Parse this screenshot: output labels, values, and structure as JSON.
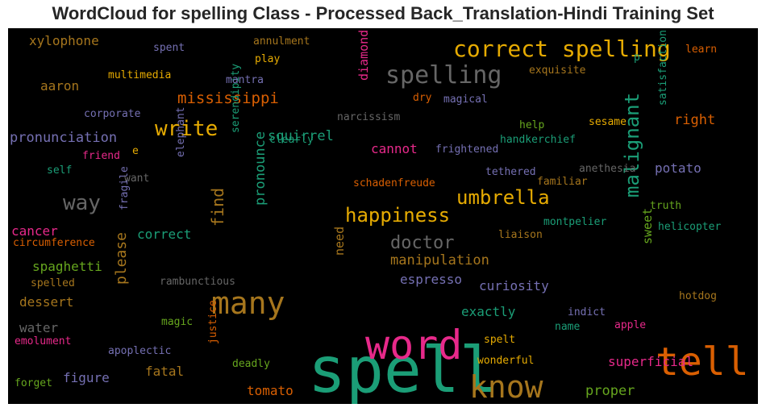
{
  "chart_data": {
    "type": "wordcloud",
    "title": "WordCloud for spelling Class - Processed Back_Translation-Hindi Training Set",
    "background": "#000000",
    "words": [
      {
        "text": "spell",
        "weight": 1.0,
        "color": "#1b9e77"
      },
      {
        "text": "word",
        "weight": 0.88,
        "color": "#e7298a"
      },
      {
        "text": "tell",
        "weight": 0.8,
        "color": "#d95f02"
      },
      {
        "text": "know",
        "weight": 0.68,
        "color": "#a6761d"
      },
      {
        "text": "many",
        "weight": 0.68,
        "color": "#a6761d"
      },
      {
        "text": "spelling",
        "weight": 0.56,
        "color": "#666666"
      },
      {
        "text": "correct spelling",
        "weight": 0.52,
        "color": "#e6ab02"
      },
      {
        "text": "write",
        "weight": 0.46,
        "color": "#e6ab02"
      },
      {
        "text": "way",
        "weight": 0.44,
        "color": "#666666"
      },
      {
        "text": "umbrella",
        "weight": 0.42,
        "color": "#e6ab02"
      },
      {
        "text": "happiness",
        "weight": 0.42,
        "color": "#e6ab02"
      },
      {
        "text": "malignant",
        "weight": 0.4,
        "color": "#1b9e77"
      },
      {
        "text": "doctor",
        "weight": 0.38,
        "color": "#666666"
      },
      {
        "text": "mississippi",
        "weight": 0.36,
        "color": "#d95f02"
      },
      {
        "text": "find",
        "weight": 0.36,
        "color": "#a6761d"
      },
      {
        "text": "pronounce",
        "weight": 0.32,
        "color": "#1b9e77"
      },
      {
        "text": "please",
        "weight": 0.32,
        "color": "#a6761d"
      },
      {
        "text": "right",
        "weight": 0.3,
        "color": "#d95f02"
      },
      {
        "text": "squirrel",
        "weight": 0.3,
        "color": "#1b9e77"
      },
      {
        "text": "pronunciation",
        "weight": 0.3,
        "color": "#7570b3"
      },
      {
        "text": "manipulation",
        "weight": 0.28,
        "color": "#a6761d"
      },
      {
        "text": "cannot",
        "weight": 0.27,
        "color": "#e7298a"
      },
      {
        "text": "exactly",
        "weight": 0.27,
        "color": "#1b9e77"
      },
      {
        "text": "curiosity",
        "weight": 0.27,
        "color": "#7570b3"
      },
      {
        "text": "potato",
        "weight": 0.27,
        "color": "#7570b3"
      },
      {
        "text": "proper",
        "weight": 0.27,
        "color": "#66a61e"
      },
      {
        "text": "superficial",
        "weight": 0.27,
        "color": "#e7298a"
      },
      {
        "text": "espresso",
        "weight": 0.26,
        "color": "#7570b3"
      },
      {
        "text": "spaghetti",
        "weight": 0.26,
        "color": "#66a61e"
      },
      {
        "text": "correct",
        "weight": 0.26,
        "color": "#1b9e77"
      },
      {
        "text": "cancer",
        "weight": 0.26,
        "color": "#e7298a"
      },
      {
        "text": "figure",
        "weight": 0.26,
        "color": "#7570b3"
      },
      {
        "text": "fatal",
        "weight": 0.26,
        "color": "#a6761d"
      },
      {
        "text": "tomato",
        "weight": 0.26,
        "color": "#d95f02"
      },
      {
        "text": "dessert",
        "weight": 0.26,
        "color": "#a6761d"
      },
      {
        "text": "water",
        "weight": 0.26,
        "color": "#666666"
      },
      {
        "text": "aaron",
        "weight": 0.26,
        "color": "#a6761d"
      },
      {
        "text": "xylophone",
        "weight": 0.24,
        "color": "#a6761d"
      },
      {
        "text": "diamond",
        "weight": 0.24,
        "color": "#e7298a"
      },
      {
        "text": "sweet",
        "weight": 0.24,
        "color": "#66a61e"
      },
      {
        "text": "need",
        "weight": 0.24,
        "color": "#a6761d"
      },
      {
        "text": "clearly",
        "weight": 0.2,
        "color": "#1b9e77"
      },
      {
        "text": "narcissism",
        "weight": 0.2,
        "color": "#666666"
      },
      {
        "text": "help",
        "weight": 0.2,
        "color": "#66a61e"
      },
      {
        "text": "sesame",
        "weight": 0.2,
        "color": "#e6ab02"
      },
      {
        "text": "handkerchief",
        "weight": 0.2,
        "color": "#1b9e77"
      },
      {
        "text": "frightened",
        "weight": 0.2,
        "color": "#7570b3"
      },
      {
        "text": "tethered",
        "weight": 0.2,
        "color": "#7570b3"
      },
      {
        "text": "anethesia",
        "weight": 0.2,
        "color": "#666666"
      },
      {
        "text": "familiar",
        "weight": 0.2,
        "color": "#a6761d"
      },
      {
        "text": "schadenfreude",
        "weight": 0.2,
        "color": "#d95f02"
      },
      {
        "text": "truth",
        "weight": 0.2,
        "color": "#66a61e"
      },
      {
        "text": "helicopter",
        "weight": 0.2,
        "color": "#1b9e77"
      },
      {
        "text": "montpelier",
        "weight": 0.2,
        "color": "#1b9e77"
      },
      {
        "text": "liaison",
        "weight": 0.2,
        "color": "#a6761d"
      },
      {
        "text": "rambunctious",
        "weight": 0.2,
        "color": "#666666"
      },
      {
        "text": "hotdog",
        "weight": 0.2,
        "color": "#a6761d"
      },
      {
        "text": "indict",
        "weight": 0.2,
        "color": "#7570b3"
      },
      {
        "text": "name",
        "weight": 0.2,
        "color": "#1b9e77"
      },
      {
        "text": "apple",
        "weight": 0.2,
        "color": "#e7298a"
      },
      {
        "text": "spelt",
        "weight": 0.2,
        "color": "#e6ab02"
      },
      {
        "text": "wonderful",
        "weight": 0.2,
        "color": "#e6ab02"
      },
      {
        "text": "deadly",
        "weight": 0.2,
        "color": "#66a61e"
      },
      {
        "text": "magic",
        "weight": 0.2,
        "color": "#66a61e"
      },
      {
        "text": "apoplectic",
        "weight": 0.2,
        "color": "#7570b3"
      },
      {
        "text": "justice",
        "weight": 0.2,
        "color": "#d95f02"
      },
      {
        "text": "forget",
        "weight": 0.2,
        "color": "#66a61e"
      },
      {
        "text": "emolument",
        "weight": 0.2,
        "color": "#e7298a"
      },
      {
        "text": "spelled",
        "weight": 0.2,
        "color": "#a6761d"
      },
      {
        "text": "circumference",
        "weight": 0.2,
        "color": "#d95f02"
      },
      {
        "text": "fragile",
        "weight": 0.2,
        "color": "#7570b3"
      },
      {
        "text": "self",
        "weight": 0.2,
        "color": "#1b9e77"
      },
      {
        "text": "friend",
        "weight": 0.2,
        "color": "#e7298a"
      },
      {
        "text": "e",
        "weight": 0.2,
        "color": "#e6ab02"
      },
      {
        "text": "want",
        "weight": 0.2,
        "color": "#666666"
      },
      {
        "text": "elephant",
        "weight": 0.2,
        "color": "#7570b3"
      },
      {
        "text": "serendipity",
        "weight": 0.2,
        "color": "#1b9e77"
      },
      {
        "text": "corporate",
        "weight": 0.2,
        "color": "#7570b3"
      },
      {
        "text": "multimedia",
        "weight": 0.2,
        "color": "#e6ab02"
      },
      {
        "text": "mantra",
        "weight": 0.2,
        "color": "#7570b3"
      },
      {
        "text": "spent",
        "weight": 0.2,
        "color": "#7570b3"
      },
      {
        "text": "annulment",
        "weight": 0.2,
        "color": "#a6761d"
      },
      {
        "text": "play",
        "weight": 0.2,
        "color": "#e6ab02"
      },
      {
        "text": "dry",
        "weight": 0.2,
        "color": "#d95f02"
      },
      {
        "text": "magical",
        "weight": 0.2,
        "color": "#7570b3"
      },
      {
        "text": "exquisite",
        "weight": 0.2,
        "color": "#a6761d"
      },
      {
        "text": "learn",
        "weight": 0.2,
        "color": "#d95f02"
      },
      {
        "text": "p",
        "weight": 0.2,
        "color": "#1b9e77"
      },
      {
        "text": "satisfaction",
        "weight": 0.2,
        "color": "#1b9e77"
      }
    ]
  }
}
